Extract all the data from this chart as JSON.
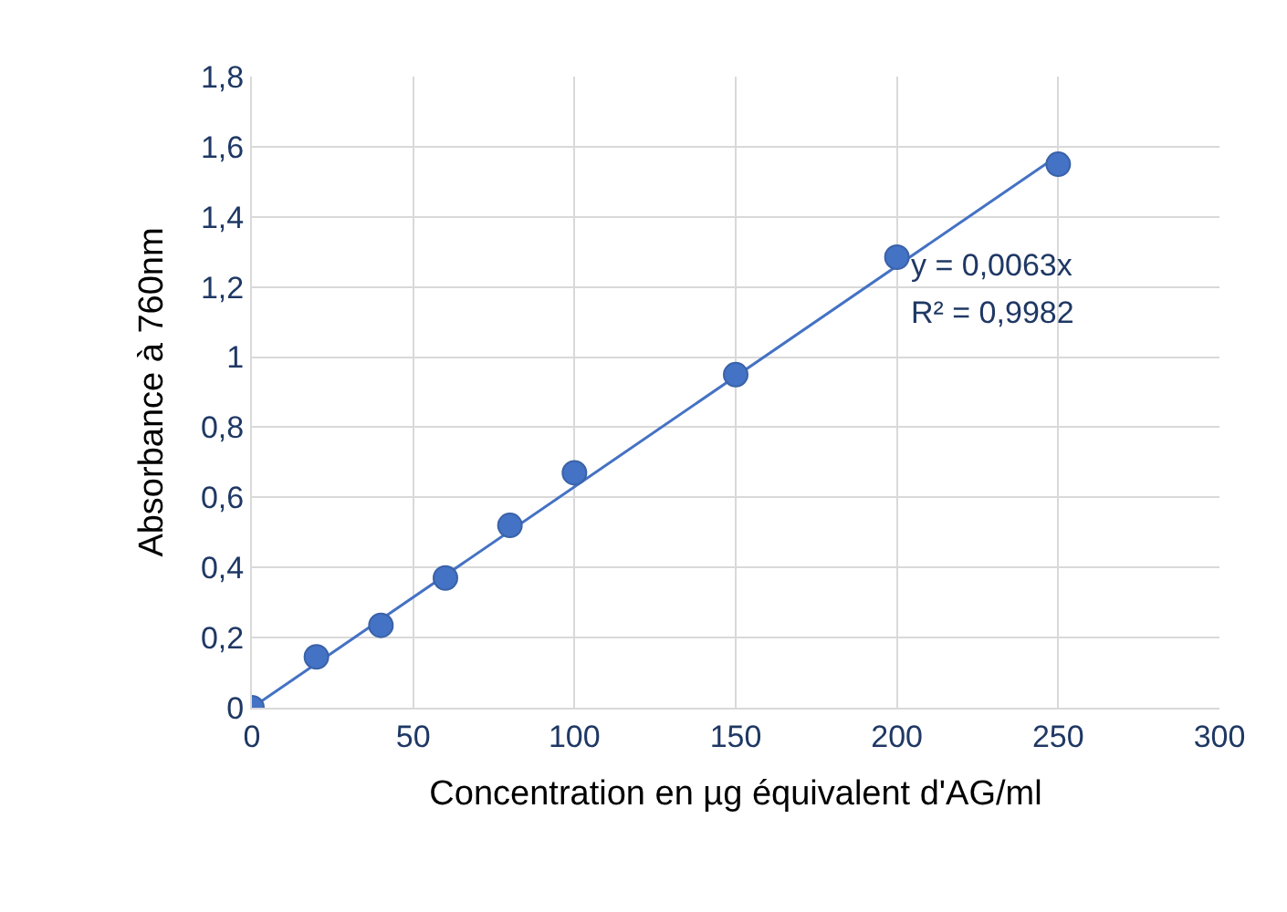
{
  "chart_data": {
    "type": "scatter",
    "xlabel": "Concentration en µg équivalent d'AG/ml",
    "ylabel": "Absorbance à 760nm",
    "xlim": [
      0,
      300
    ],
    "xticks": [
      0,
      50,
      100,
      150,
      200,
      250,
      300
    ],
    "ylim": [
      0,
      1.8
    ],
    "yticks": [
      0,
      {
        "value": 0.2,
        "label": "0,2"
      },
      {
        "value": 0.4,
        "label": "0,4"
      },
      {
        "value": 0.6,
        "label": "0,6"
      },
      {
        "value": 0.8,
        "label": "0,8"
      },
      1,
      {
        "value": 1.2,
        "label": "1,2"
      },
      {
        "value": 1.4,
        "label": "1,4"
      },
      {
        "value": 1.6,
        "label": "1,6"
      },
      {
        "value": 1.8,
        "label": "1,8"
      }
    ],
    "grid": true,
    "legend": false,
    "series": [
      {
        "type": "line",
        "color": "#4472c4",
        "x": [
          0,
          250
        ],
        "values": [
          0,
          1.575
        ],
        "marker": "none",
        "line_style": "solid"
      },
      {
        "color": "#4472c4",
        "x": [
          0,
          20,
          40,
          60,
          80,
          100,
          150,
          200,
          250
        ],
        "values": [
          0,
          0.145,
          0.235,
          0.37,
          0.52,
          0.67,
          0.95,
          1.285,
          1.55
        ],
        "marker": "circle"
      }
    ],
    "annotations": [
      "y = 0,0063x",
      "R² = 0,9982"
    ]
  }
}
